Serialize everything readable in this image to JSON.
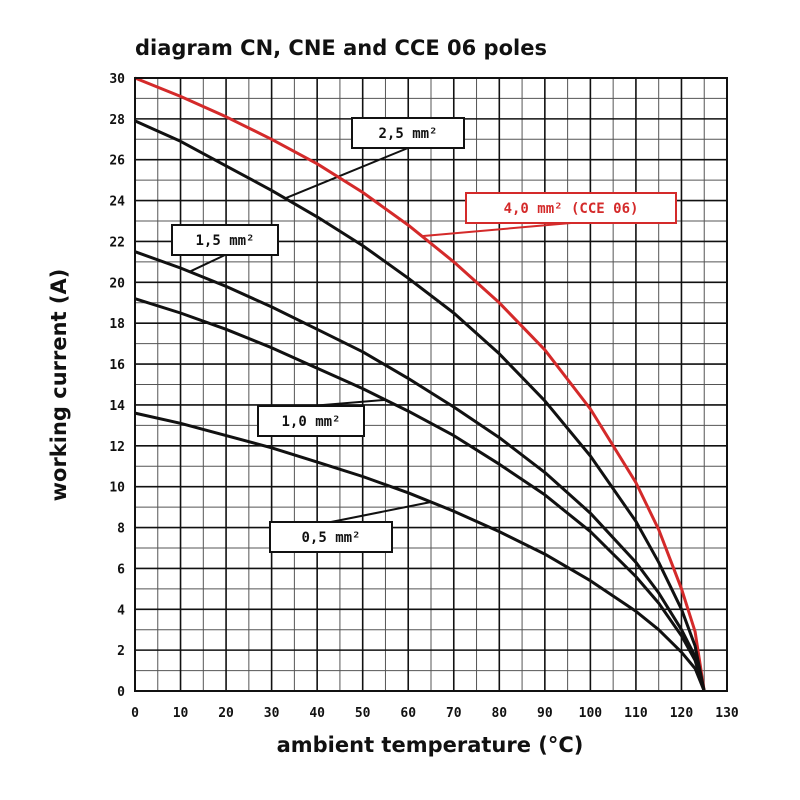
{
  "chart_data": {
    "type": "line",
    "title": "diagram CN, CNE and CCE 06 poles",
    "xlabel": "ambient temperature (°C)",
    "ylabel": "working current (A)",
    "xlim": [
      0,
      130
    ],
    "ylim": [
      0,
      30
    ],
    "x_ticks": [
      "0",
      "10",
      "20",
      "30",
      "40",
      "50",
      "60",
      "70",
      "80",
      "90",
      "100",
      "110",
      "120",
      "130"
    ],
    "y_ticks": [
      "0",
      "2",
      "4",
      "6",
      "8",
      "10",
      "12",
      "14",
      "16",
      "18",
      "20",
      "22",
      "24",
      "26",
      "28",
      "30"
    ],
    "grid": true,
    "series": [
      {
        "name": "4,0 mm² (CCE 06)",
        "color": "#d42a2a",
        "x": [
          0,
          10,
          20,
          30,
          40,
          50,
          60,
          70,
          80,
          90,
          100,
          110,
          115,
          120,
          123,
          125
        ],
        "y": [
          30.0,
          29.1,
          28.1,
          27.0,
          25.8,
          24.4,
          22.8,
          21.0,
          19.0,
          16.7,
          13.8,
          10.2,
          7.9,
          5.0,
          2.9,
          0.0
        ]
      },
      {
        "name": "2,5 mm²",
        "color": "#111111",
        "x": [
          0,
          10,
          20,
          30,
          40,
          50,
          60,
          70,
          80,
          90,
          100,
          110,
          115,
          120,
          123,
          125
        ],
        "y": [
          27.9,
          26.9,
          25.7,
          24.5,
          23.2,
          21.8,
          20.2,
          18.5,
          16.5,
          14.2,
          11.5,
          8.3,
          6.3,
          4.0,
          2.2,
          0.0
        ]
      },
      {
        "name": "1,5 mm²",
        "color": "#111111",
        "x": [
          0,
          10,
          20,
          30,
          40,
          50,
          60,
          70,
          80,
          90,
          100,
          110,
          115,
          120,
          123,
          125
        ],
        "y": [
          21.5,
          20.7,
          19.8,
          18.8,
          17.7,
          16.6,
          15.3,
          13.9,
          12.4,
          10.7,
          8.7,
          6.3,
          4.8,
          3.0,
          1.7,
          0.0
        ]
      },
      {
        "name": "1,0 mm²",
        "color": "#111111",
        "x": [
          0,
          10,
          20,
          30,
          40,
          50,
          60,
          70,
          80,
          90,
          100,
          110,
          115,
          120,
          123,
          125
        ],
        "y": [
          19.2,
          18.5,
          17.7,
          16.8,
          15.8,
          14.8,
          13.7,
          12.5,
          11.1,
          9.6,
          7.8,
          5.6,
          4.3,
          2.7,
          1.5,
          0.0
        ]
      },
      {
        "name": "0,5 mm²",
        "color": "#111111",
        "x": [
          0,
          10,
          20,
          30,
          40,
          50,
          60,
          70,
          80,
          90,
          100,
          110,
          115,
          120,
          123,
          125
        ],
        "y": [
          13.6,
          13.1,
          12.5,
          11.9,
          11.2,
          10.5,
          9.7,
          8.8,
          7.8,
          6.7,
          5.4,
          3.9,
          3.0,
          1.9,
          1.1,
          0.0
        ]
      }
    ],
    "annotations": [
      {
        "text": "2,5 mm²",
        "series": "2,5 mm²",
        "color": "#111111"
      },
      {
        "text": "4,0 mm² (CCE 06)",
        "series": "4,0 mm² (CCE 06)",
        "color": "#d42a2a"
      },
      {
        "text": "1,5 mm²",
        "series": "1,5 mm²",
        "color": "#111111"
      },
      {
        "text": "1,0 mm²",
        "series": "1,0 mm²",
        "color": "#111111"
      },
      {
        "text": "0,5 mm²",
        "series": "0,5 mm²",
        "color": "#111111"
      }
    ]
  }
}
